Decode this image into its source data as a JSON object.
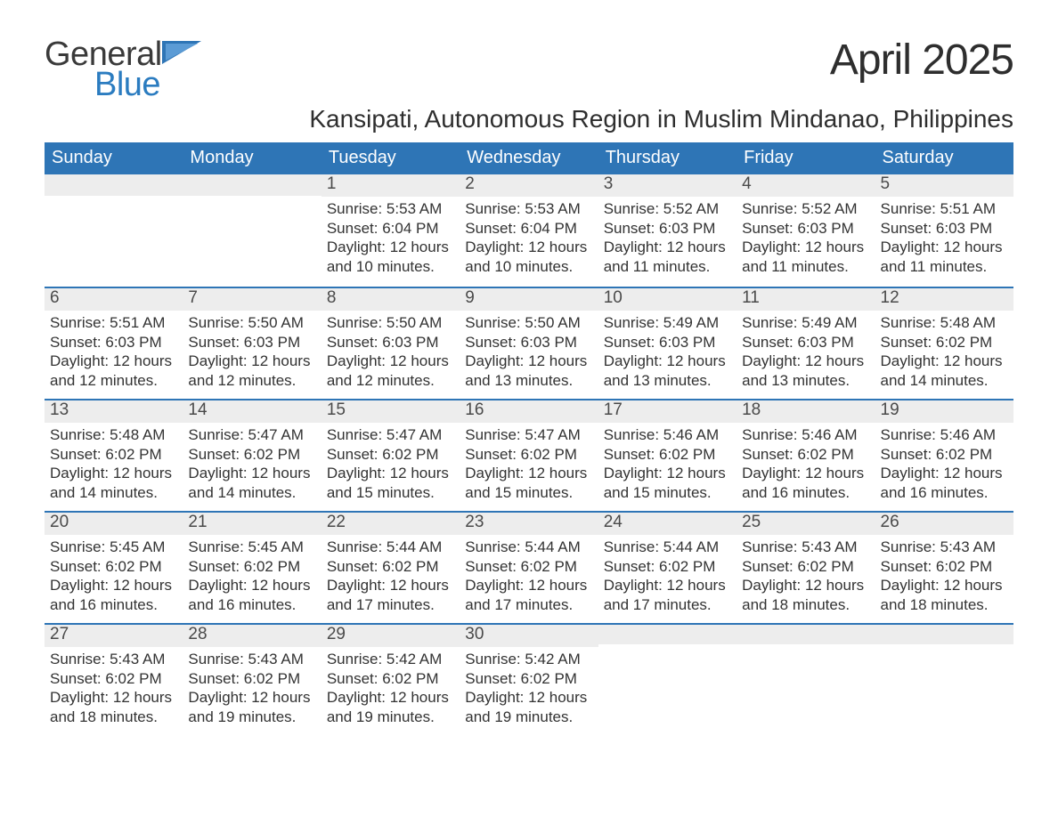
{
  "logo": {
    "general": "General",
    "blue": "Blue"
  },
  "title": "April 2025",
  "location": "Kansipati, Autonomous Region in Muslim Mindanao, Philippines",
  "colors": {
    "header_bg": "#2e75b6",
    "header_text": "#ffffff",
    "band_bg": "#ededed",
    "band_border": "#2e75b6",
    "logo_blue": "#2b7cc0",
    "body_text": "#333333",
    "page_bg": "#ffffff"
  },
  "weekdays": [
    "Sunday",
    "Monday",
    "Tuesday",
    "Wednesday",
    "Thursday",
    "Friday",
    "Saturday"
  ],
  "rows": [
    [
      null,
      null,
      {
        "n": "1",
        "sr": "Sunrise: 5:53 AM",
        "ss": "Sunset: 6:04 PM",
        "d1": "Daylight: 12 hours",
        "d2": "and 10 minutes."
      },
      {
        "n": "2",
        "sr": "Sunrise: 5:53 AM",
        "ss": "Sunset: 6:04 PM",
        "d1": "Daylight: 12 hours",
        "d2": "and 10 minutes."
      },
      {
        "n": "3",
        "sr": "Sunrise: 5:52 AM",
        "ss": "Sunset: 6:03 PM",
        "d1": "Daylight: 12 hours",
        "d2": "and 11 minutes."
      },
      {
        "n": "4",
        "sr": "Sunrise: 5:52 AM",
        "ss": "Sunset: 6:03 PM",
        "d1": "Daylight: 12 hours",
        "d2": "and 11 minutes."
      },
      {
        "n": "5",
        "sr": "Sunrise: 5:51 AM",
        "ss": "Sunset: 6:03 PM",
        "d1": "Daylight: 12 hours",
        "d2": "and 11 minutes."
      }
    ],
    [
      {
        "n": "6",
        "sr": "Sunrise: 5:51 AM",
        "ss": "Sunset: 6:03 PM",
        "d1": "Daylight: 12 hours",
        "d2": "and 12 minutes."
      },
      {
        "n": "7",
        "sr": "Sunrise: 5:50 AM",
        "ss": "Sunset: 6:03 PM",
        "d1": "Daylight: 12 hours",
        "d2": "and 12 minutes."
      },
      {
        "n": "8",
        "sr": "Sunrise: 5:50 AM",
        "ss": "Sunset: 6:03 PM",
        "d1": "Daylight: 12 hours",
        "d2": "and 12 minutes."
      },
      {
        "n": "9",
        "sr": "Sunrise: 5:50 AM",
        "ss": "Sunset: 6:03 PM",
        "d1": "Daylight: 12 hours",
        "d2": "and 13 minutes."
      },
      {
        "n": "10",
        "sr": "Sunrise: 5:49 AM",
        "ss": "Sunset: 6:03 PM",
        "d1": "Daylight: 12 hours",
        "d2": "and 13 minutes."
      },
      {
        "n": "11",
        "sr": "Sunrise: 5:49 AM",
        "ss": "Sunset: 6:03 PM",
        "d1": "Daylight: 12 hours",
        "d2": "and 13 minutes."
      },
      {
        "n": "12",
        "sr": "Sunrise: 5:48 AM",
        "ss": "Sunset: 6:02 PM",
        "d1": "Daylight: 12 hours",
        "d2": "and 14 minutes."
      }
    ],
    [
      {
        "n": "13",
        "sr": "Sunrise: 5:48 AM",
        "ss": "Sunset: 6:02 PM",
        "d1": "Daylight: 12 hours",
        "d2": "and 14 minutes."
      },
      {
        "n": "14",
        "sr": "Sunrise: 5:47 AM",
        "ss": "Sunset: 6:02 PM",
        "d1": "Daylight: 12 hours",
        "d2": "and 14 minutes."
      },
      {
        "n": "15",
        "sr": "Sunrise: 5:47 AM",
        "ss": "Sunset: 6:02 PM",
        "d1": "Daylight: 12 hours",
        "d2": "and 15 minutes."
      },
      {
        "n": "16",
        "sr": "Sunrise: 5:47 AM",
        "ss": "Sunset: 6:02 PM",
        "d1": "Daylight: 12 hours",
        "d2": "and 15 minutes."
      },
      {
        "n": "17",
        "sr": "Sunrise: 5:46 AM",
        "ss": "Sunset: 6:02 PM",
        "d1": "Daylight: 12 hours",
        "d2": "and 15 minutes."
      },
      {
        "n": "18",
        "sr": "Sunrise: 5:46 AM",
        "ss": "Sunset: 6:02 PM",
        "d1": "Daylight: 12 hours",
        "d2": "and 16 minutes."
      },
      {
        "n": "19",
        "sr": "Sunrise: 5:46 AM",
        "ss": "Sunset: 6:02 PM",
        "d1": "Daylight: 12 hours",
        "d2": "and 16 minutes."
      }
    ],
    [
      {
        "n": "20",
        "sr": "Sunrise: 5:45 AM",
        "ss": "Sunset: 6:02 PM",
        "d1": "Daylight: 12 hours",
        "d2": "and 16 minutes."
      },
      {
        "n": "21",
        "sr": "Sunrise: 5:45 AM",
        "ss": "Sunset: 6:02 PM",
        "d1": "Daylight: 12 hours",
        "d2": "and 16 minutes."
      },
      {
        "n": "22",
        "sr": "Sunrise: 5:44 AM",
        "ss": "Sunset: 6:02 PM",
        "d1": "Daylight: 12 hours",
        "d2": "and 17 minutes."
      },
      {
        "n": "23",
        "sr": "Sunrise: 5:44 AM",
        "ss": "Sunset: 6:02 PM",
        "d1": "Daylight: 12 hours",
        "d2": "and 17 minutes."
      },
      {
        "n": "24",
        "sr": "Sunrise: 5:44 AM",
        "ss": "Sunset: 6:02 PM",
        "d1": "Daylight: 12 hours",
        "d2": "and 17 minutes."
      },
      {
        "n": "25",
        "sr": "Sunrise: 5:43 AM",
        "ss": "Sunset: 6:02 PM",
        "d1": "Daylight: 12 hours",
        "d2": "and 18 minutes."
      },
      {
        "n": "26",
        "sr": "Sunrise: 5:43 AM",
        "ss": "Sunset: 6:02 PM",
        "d1": "Daylight: 12 hours",
        "d2": "and 18 minutes."
      }
    ],
    [
      {
        "n": "27",
        "sr": "Sunrise: 5:43 AM",
        "ss": "Sunset: 6:02 PM",
        "d1": "Daylight: 12 hours",
        "d2": "and 18 minutes."
      },
      {
        "n": "28",
        "sr": "Sunrise: 5:43 AM",
        "ss": "Sunset: 6:02 PM",
        "d1": "Daylight: 12 hours",
        "d2": "and 19 minutes."
      },
      {
        "n": "29",
        "sr": "Sunrise: 5:42 AM",
        "ss": "Sunset: 6:02 PM",
        "d1": "Daylight: 12 hours",
        "d2": "and 19 minutes."
      },
      {
        "n": "30",
        "sr": "Sunrise: 5:42 AM",
        "ss": "Sunset: 6:02 PM",
        "d1": "Daylight: 12 hours",
        "d2": "and 19 minutes."
      },
      null,
      null,
      null
    ]
  ]
}
